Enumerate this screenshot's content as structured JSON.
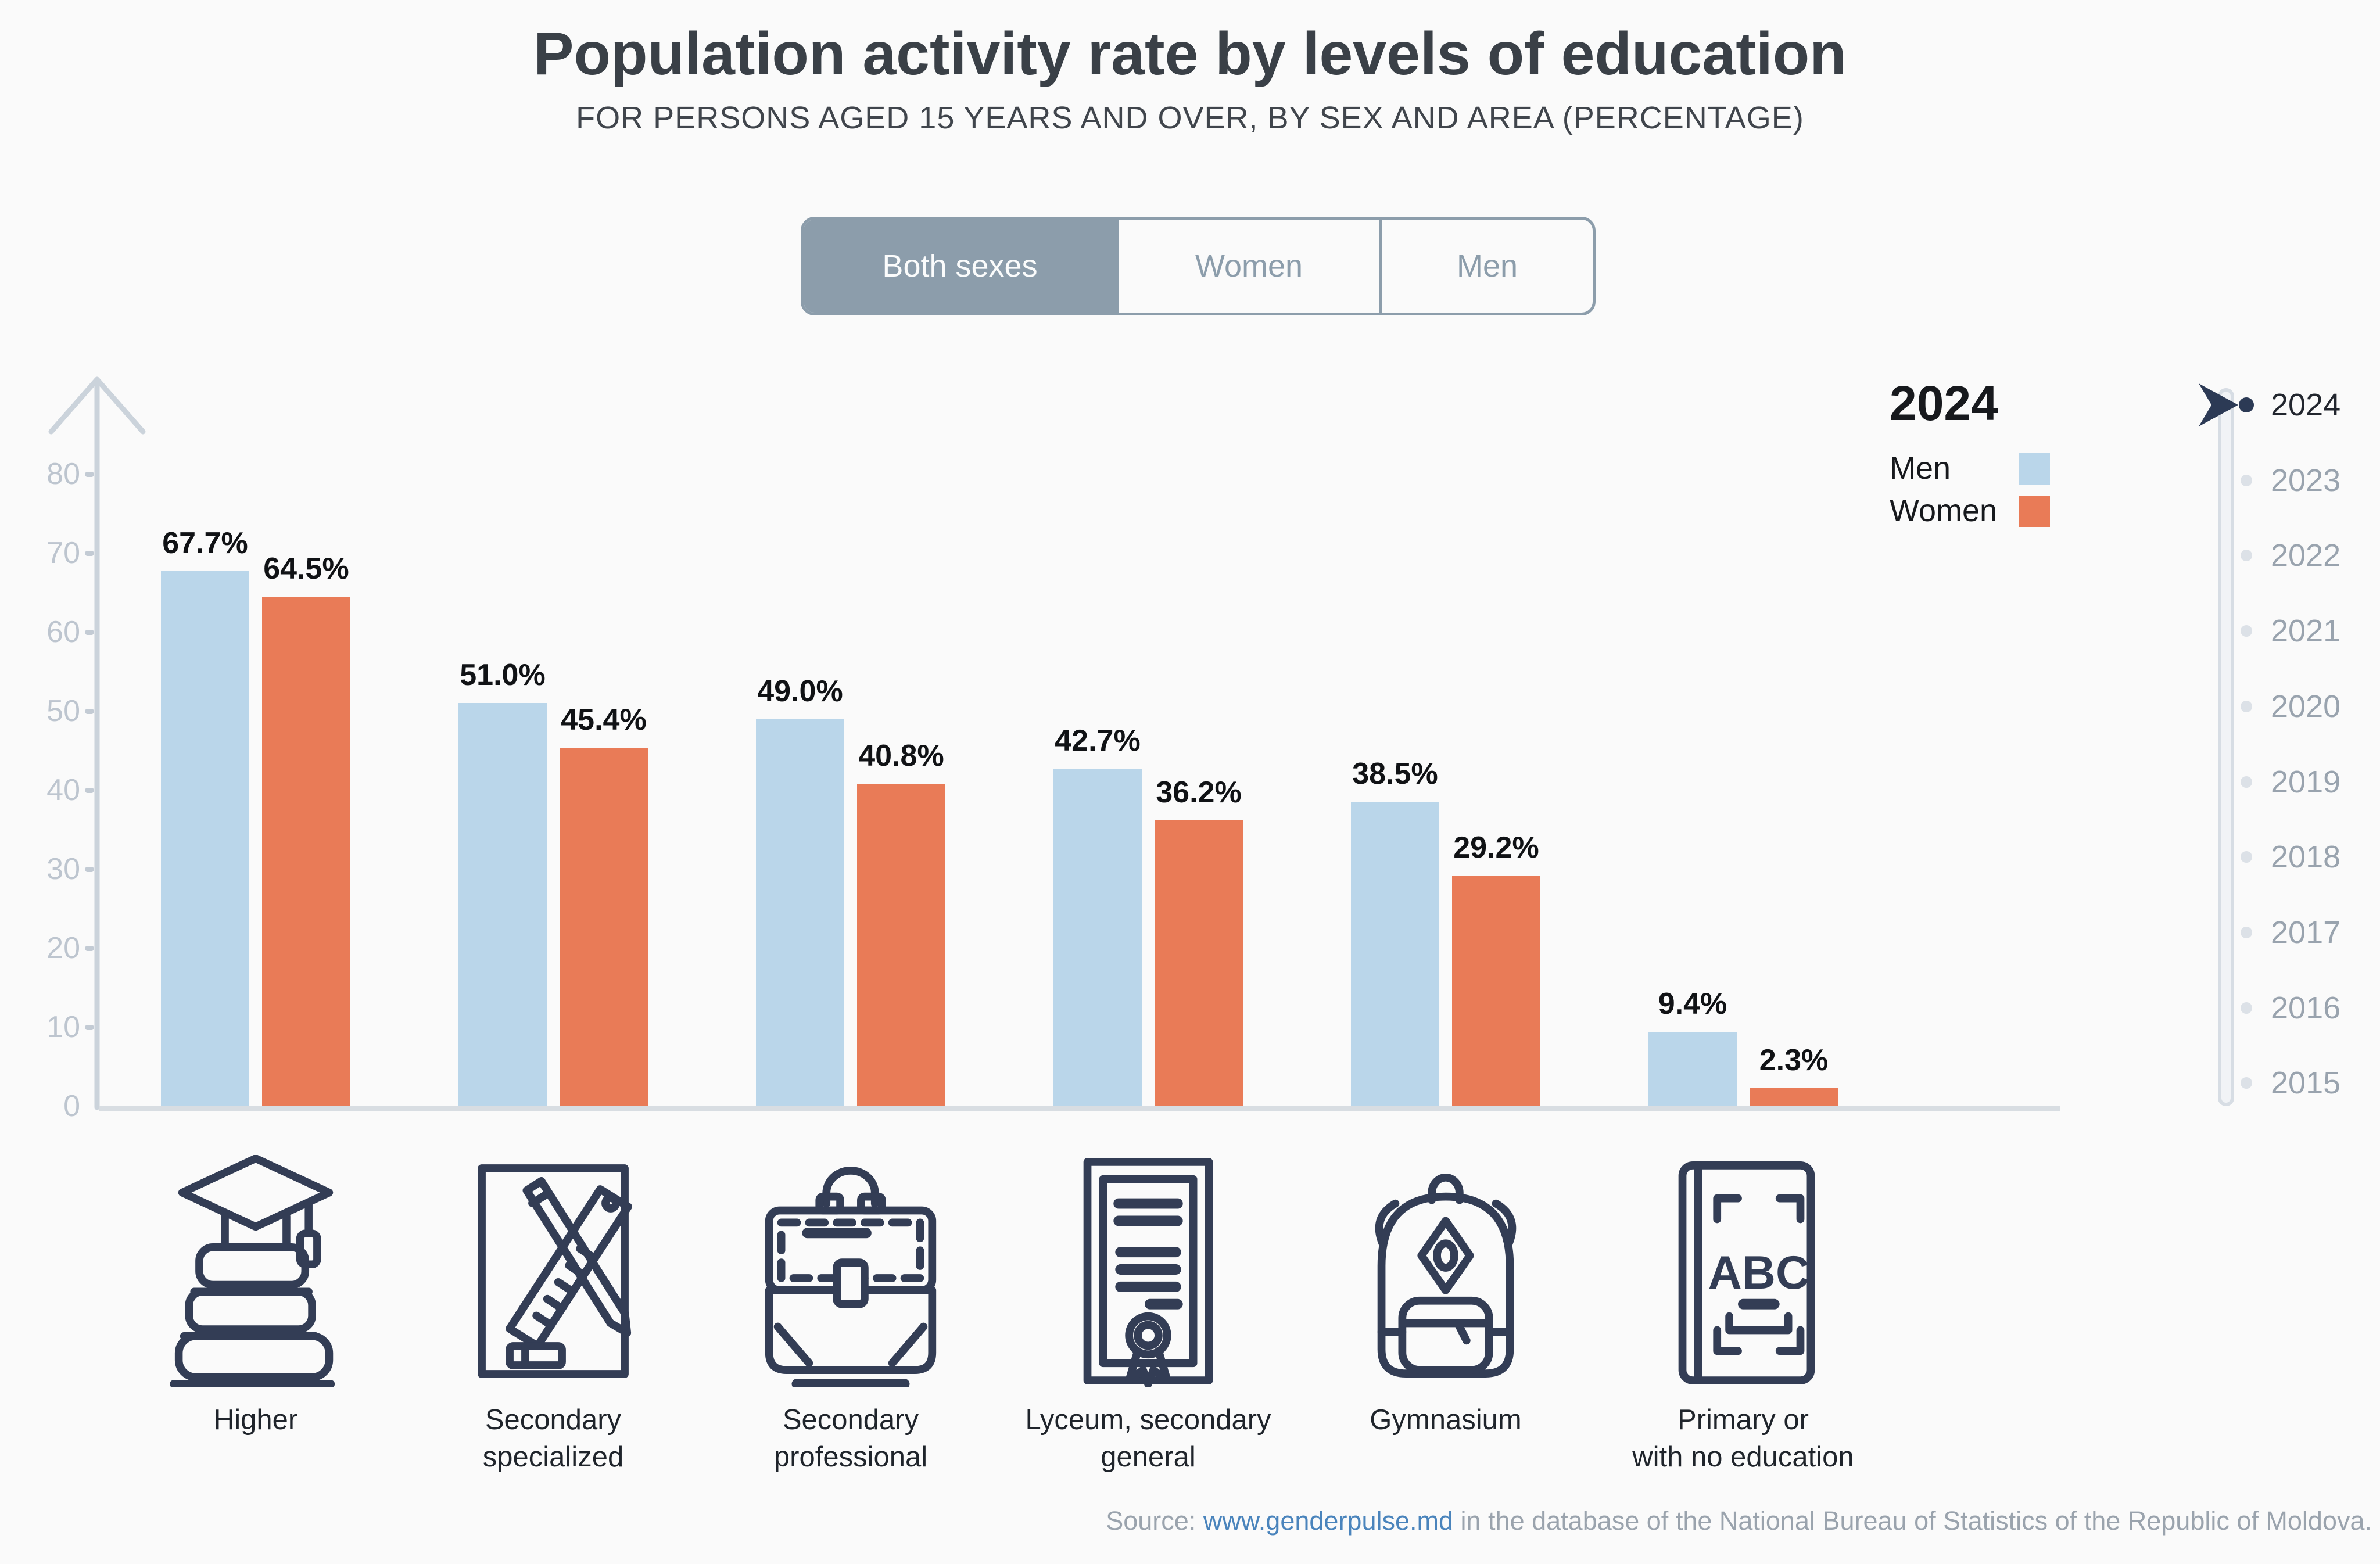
{
  "title": "Population activity rate by levels of education",
  "subtitle": "FOR PERSONS AGED 15 YEARS AND OVER, BY SEX AND AREA (PERCENTAGE)",
  "toggle": {
    "options": [
      "Both sexes",
      "Women",
      "Men"
    ],
    "selected": "Both sexes"
  },
  "legend": {
    "year": "2024",
    "items": [
      {
        "label": "Men",
        "color": "#BAD6EA"
      },
      {
        "label": "Women",
        "color": "#E97B57"
      }
    ]
  },
  "timeline": {
    "years": [
      "2024",
      "2023",
      "2022",
      "2021",
      "2020",
      "2019",
      "2018",
      "2017",
      "2016",
      "2015"
    ],
    "selected": "2024"
  },
  "chart_data": {
    "type": "bar",
    "title": "Population activity rate by levels of education",
    "subtitle": "FOR PERSONS AGED 15 YEARS AND OVER, BY SEX AND AREA (PERCENTAGE)",
    "year": "2024",
    "categories": [
      "Higher",
      "Secondary specialized",
      "Secondary professional",
      "Lyceum, secondary general",
      "Gymnasium",
      "Primary or with no education"
    ],
    "series": [
      {
        "name": "Men",
        "color": "#BAD6EA",
        "values": [
          67.7,
          51.0,
          49.0,
          42.7,
          38.5,
          9.4
        ]
      },
      {
        "name": "Women",
        "color": "#E97B57",
        "values": [
          64.5,
          45.4,
          40.8,
          36.2,
          29.2,
          2.3
        ]
      }
    ],
    "value_suffix": "%",
    "ylim": [
      0,
      80
    ],
    "yticks": [
      0,
      10,
      20,
      30,
      40,
      50,
      60,
      70,
      80
    ],
    "grid": false,
    "legend_position": "top-right"
  },
  "category_labels_lines": [
    [
      "Higher"
    ],
    [
      "Secondary",
      "specialized"
    ],
    [
      "Secondary",
      "professional"
    ],
    [
      "Lyceum, secondary",
      "general"
    ],
    [
      "Gymnasium"
    ],
    [
      "Primary or",
      "with no education"
    ]
  ],
  "icons": [
    "higher-education-books-graduation-cap-icon",
    "secondary-specialized-pencil-ruler-icon",
    "secondary-professional-briefcase-icon",
    "lyceum-diploma-icon",
    "gymnasium-backpack-icon",
    "primary-abc-book-icon"
  ],
  "footer": {
    "prefix": "Source: ",
    "link_text": "www.genderpulse.md",
    "suffix": " in the database of the National Bureau of Statistics of the Republic of Moldova."
  },
  "colors": {
    "background": "#FAFAFA",
    "men_bar": "#BAD6EA",
    "women_bar": "#E97B57",
    "accent_dark": "#2C3A55",
    "icon_stroke": "#333D55",
    "axis": "#CBD3DB",
    "baseline": "#D8DDE2",
    "tick_label": "#BDC5CF",
    "toggle": "#8C9DAB",
    "inactive_year_text": "#99A3AE",
    "inactive_dot": "#DCE1E7",
    "link": "#4A84BC",
    "footer_text": "#9AA3AD"
  }
}
